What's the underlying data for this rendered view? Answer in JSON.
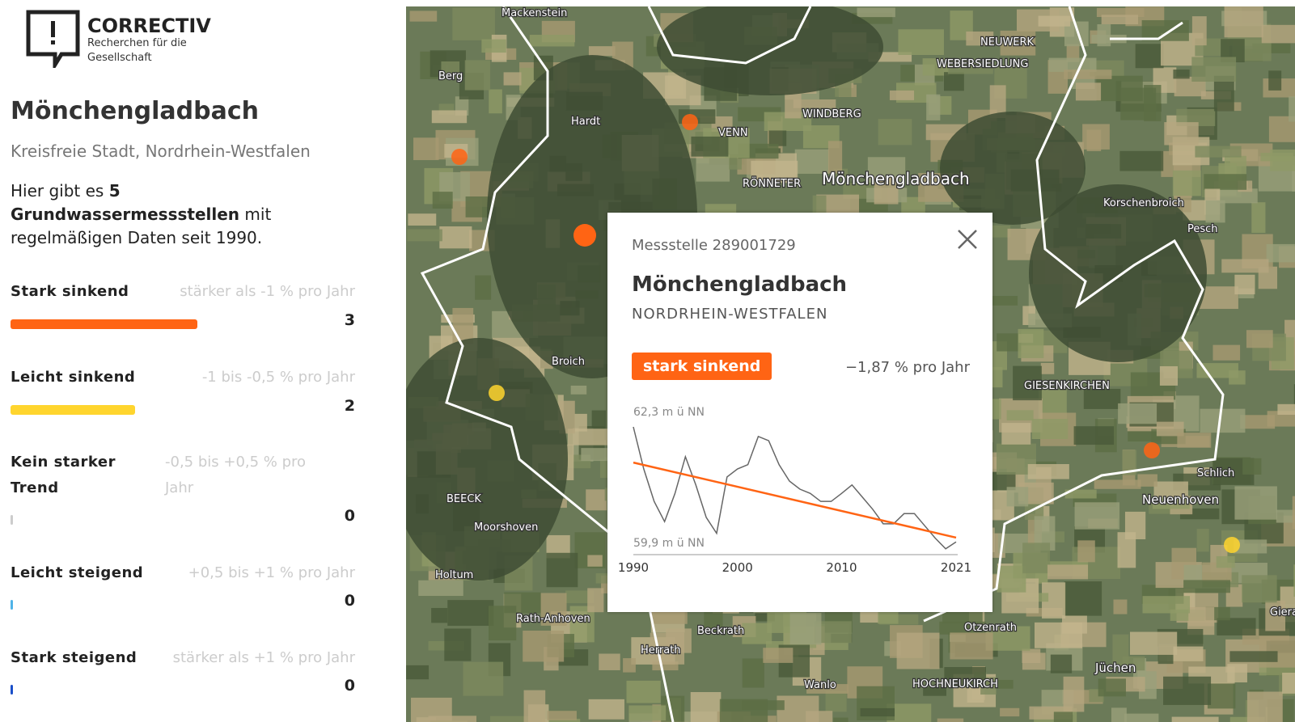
{
  "header": {
    "brand": "CORRECTIV",
    "tagline_1": "Recherchen für die",
    "tagline_2": "Gesellschaft"
  },
  "sidebar": {
    "title": "Mönchengladbach",
    "subtitle": "Kreisfreie Stadt, Nordrhein-Westfalen",
    "intro": {
      "before": "Hier gibt es",
      "count": 5,
      "bold": "Grundwassermessstellen",
      "after": "mit regelmäßigen Daten seit 1990."
    },
    "legend": [
      {
        "name": "Stark sinkend",
        "range": "stärker als -1 % pro Jahr",
        "count": 3,
        "color": "#ff6414"
      },
      {
        "name": "Leicht sinkend",
        "range": "-1 bis -0,5 % pro Jahr",
        "count": 2,
        "color": "#ffd52e"
      },
      {
        "name": "Kein starker Trend",
        "range": "-0,5 bis +0,5 % pro Jahr",
        "count": 0,
        "color": "#cccccc"
      },
      {
        "name": "Leicht steigend",
        "range": "+0,5 bis +1 % pro Jahr",
        "count": 0,
        "color": "#4fb3e8"
      },
      {
        "name": "Stark steigend",
        "range": "stärker als +1 % pro Jahr",
        "count": 0,
        "color": "#1a4fc9"
      }
    ]
  },
  "map": {
    "places": [
      "Mackenstein",
      "Berg",
      "Hardt",
      "VENN",
      "NEUWERK",
      "WEBERSIEDLUNG",
      "WINDBERG",
      "RÖNNETER",
      "Mönchengladbach",
      "Korschenbroich",
      "Pesch",
      "Broich",
      "GIESENKIRCHEN",
      "Schlich",
      "Neuenhoven",
      "BEECK",
      "Moorshoven",
      "Holtum",
      "Rath-Anhoven",
      "Beckrath",
      "Herrath",
      "Otzenrath",
      "Wanlo",
      "HOCHNEUKIRCH",
      "Jüchen",
      "Gierath"
    ]
  },
  "popup": {
    "station": "Messstelle 289001729",
    "title": "Mönchengladbach",
    "region": "NORDRHEIN-WESTFALEN",
    "badge": "stark sinkend",
    "trend": "−1,87 % pro Jahr",
    "chart_data": {
      "type": "line",
      "x": [
        1990,
        1991,
        1992,
        1993,
        1994,
        1995,
        1996,
        1997,
        1998,
        1999,
        2000,
        2001,
        2002,
        2003,
        2004,
        2005,
        2006,
        2007,
        2008,
        2009,
        2010,
        2011,
        2012,
        2013,
        2014,
        2015,
        2016,
        2017,
        2018,
        2019,
        2020,
        2021
      ],
      "series": [
        {
          "color": "#666666",
          "values": [
            62.3,
            61.51,
            60.9,
            60.52,
            61.05,
            61.74,
            61.21,
            60.6,
            60.3,
            61.36,
            61.51,
            61.59,
            62.12,
            62.04,
            61.59,
            61.28,
            61.13,
            61.05,
            60.9,
            60.9,
            61.05,
            61.21,
            60.98,
            60.75,
            60.48,
            60.48,
            60.67,
            60.67,
            60.44,
            60.21,
            60.01,
            60.14
          ]
        }
      ],
      "trend": {
        "color": "#ff6414",
        "x": [
          1990,
          2021
        ],
        "values": [
          61.63,
          60.22
        ]
      },
      "xlim": [
        1990,
        2021
      ],
      "ylim": [
        59.9,
        62.3
      ],
      "xticks": [
        1990,
        2000,
        2010,
        2021
      ],
      "yticks": [
        {
          "value": 62.3,
          "label": "62,3 m ü NN"
        },
        {
          "value": 59.9,
          "label": "59,9 m ü NN"
        }
      ]
    }
  }
}
